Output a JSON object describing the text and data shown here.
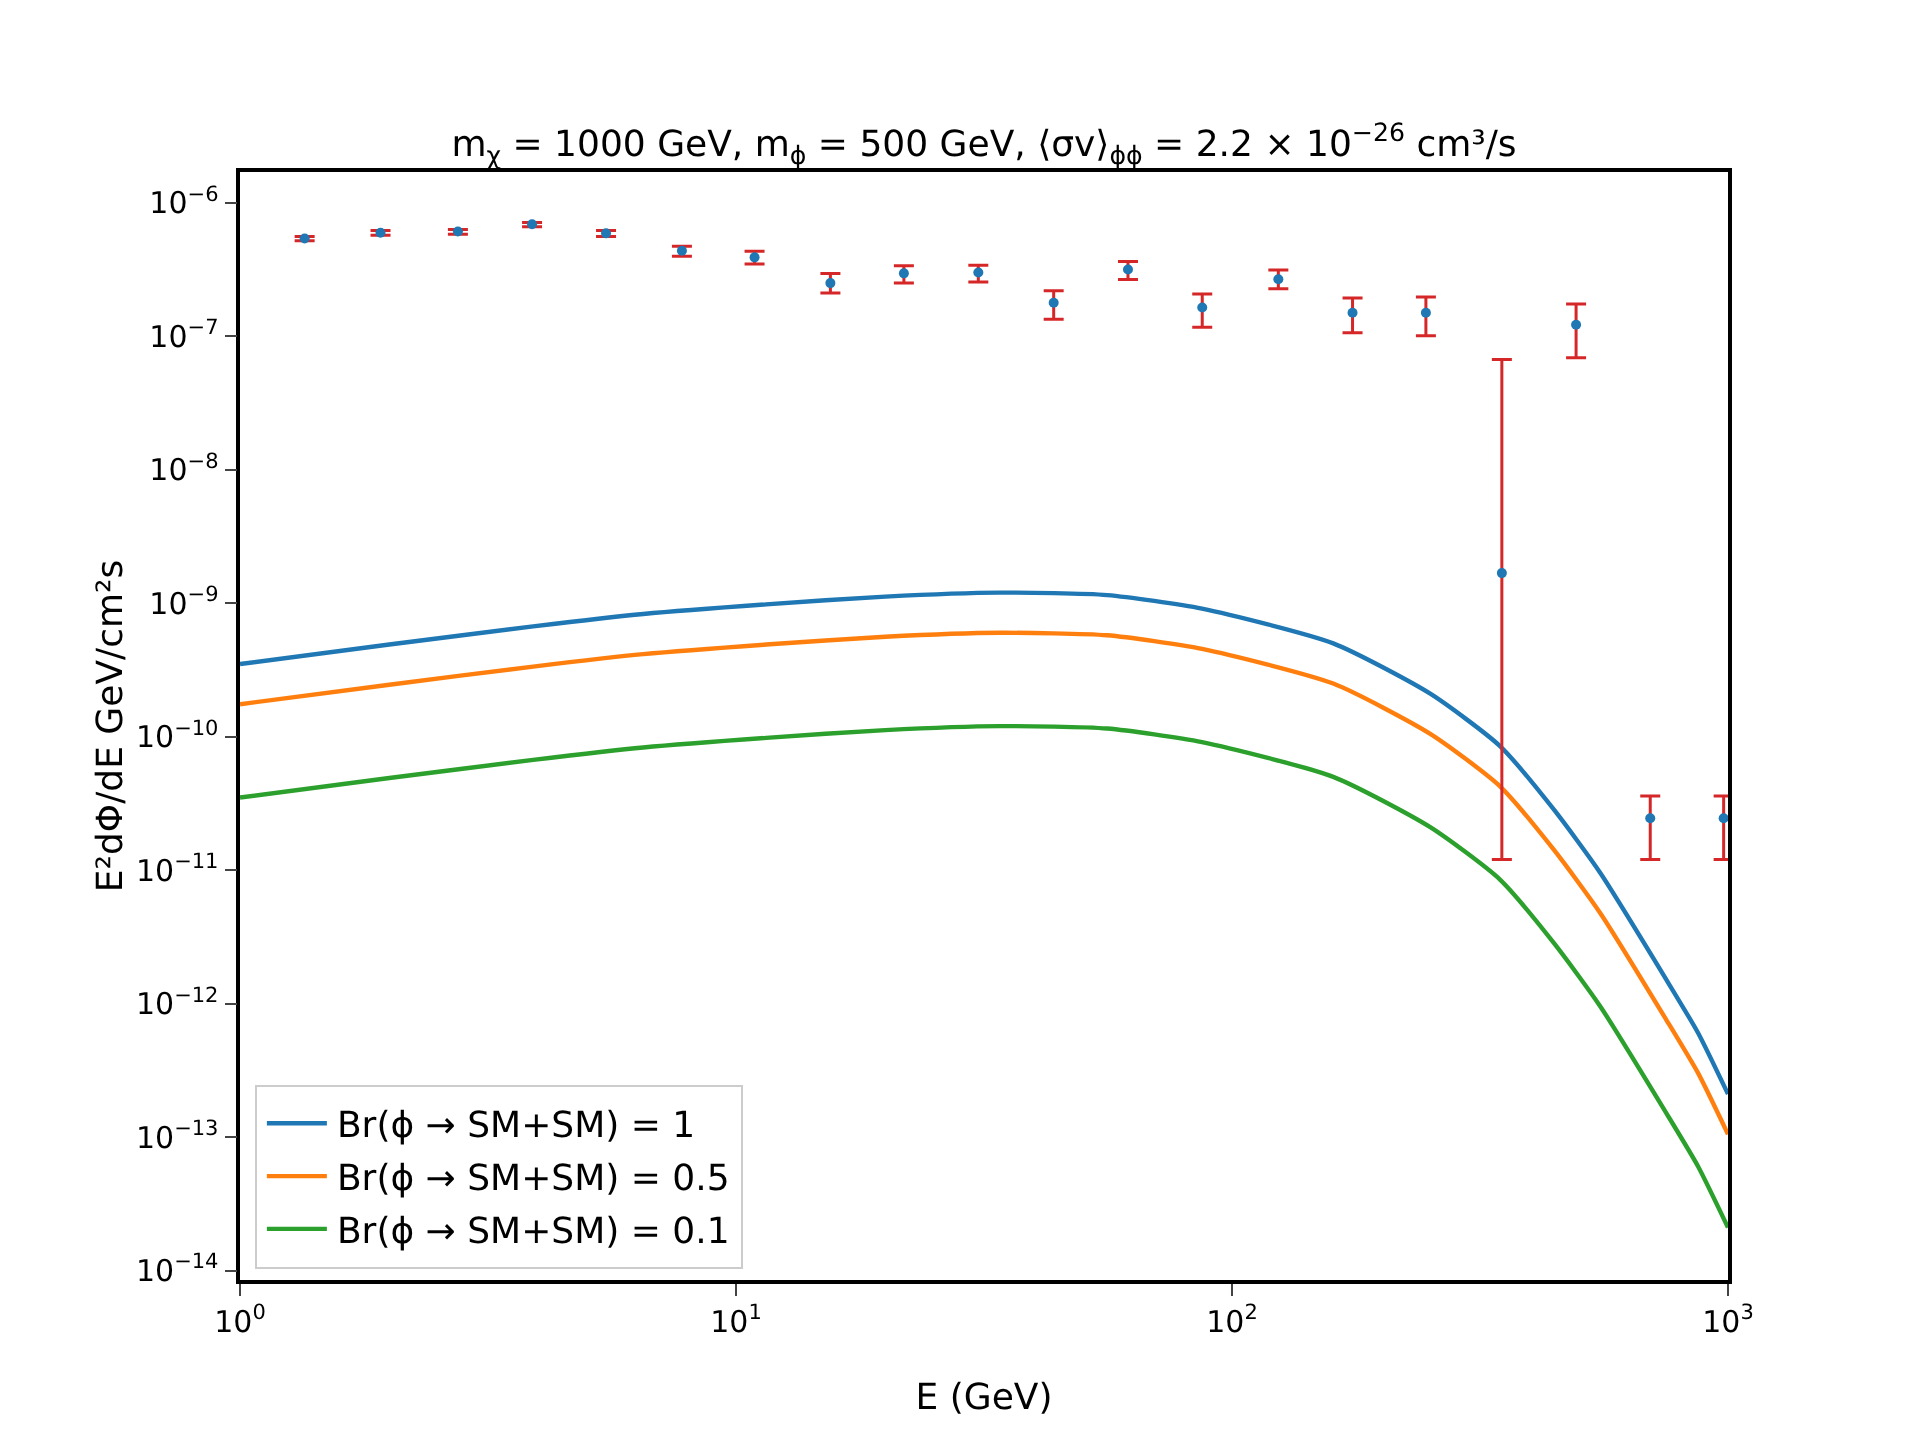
{
  "chart_data": {
    "type": "line",
    "title": "m$_{χ}$ = 1000 GeV, m$_{ϕ}$ = 500 GeV, ⟨σv⟩$_{ϕϕ}$ = 2.2 × 10$^{−26}$ cm³/s",
    "xlabel": "E (GeV)",
    "ylabel": "E²dΦ/dE GeV/cm²s",
    "log": "xy",
    "grid": false,
    "legend": "bottom left",
    "line_style": "solid",
    "xlim": [
      1,
      1000
    ],
    "ylim": [
      8.5e-15,
      1.7e-06
    ],
    "xticks": [
      {
        "value": 1,
        "label": "10$^{0}$"
      },
      {
        "value": 10,
        "label": "10$^{1}$"
      },
      {
        "value": 100,
        "label": "10$^{2}$"
      },
      {
        "value": 1000,
        "label": "10$^{3}$"
      }
    ],
    "yticks": [
      {
        "value": 1e-14,
        "label": "10$^{−14}$"
      },
      {
        "value": 1e-13,
        "label": "10$^{−13}$"
      },
      {
        "value": 1e-12,
        "label": "10$^{−12}$"
      },
      {
        "value": 1e-11,
        "label": "10$^{−11}$"
      },
      {
        "value": 1e-10,
        "label": "10$^{−10}$"
      },
      {
        "value": 1e-09,
        "label": "10$^{−9}$"
      },
      {
        "value": 1e-08,
        "label": "10$^{−8}$"
      },
      {
        "value": 1e-07,
        "label": "10$^{−7}$"
      },
      {
        "value": 1e-06,
        "label": "10$^{−6}$"
      }
    ],
    "series": [
      {
        "name": "Br(ϕ → SM+SM) = 1",
        "color": "#1f77b4",
        "x": [
          1,
          2,
          3.9,
          6.5,
          11.5,
          20,
          34,
          56,
          87,
          160,
          251,
          347,
          447,
          552,
          752,
          871,
          1000
        ],
        "values": [
          3.5e-10,
          4.9e-10,
          6.7e-10,
          8.3e-10,
          9.8e-10,
          1.12e-09,
          1.2e-09,
          1.15e-09,
          9.1e-10,
          5e-10,
          2.1e-10,
          8.5e-11,
          2.8e-11,
          9.6e-12,
          1.5e-12,
          6e-13,
          2.1e-13
        ]
      },
      {
        "name": "Br(ϕ → SM+SM) = 0.5",
        "color": "#ff7f0e",
        "x": [
          1,
          2,
          3.9,
          6.5,
          11.5,
          20,
          34,
          56,
          87,
          160,
          251,
          347,
          447,
          552,
          752,
          871,
          1000
        ],
        "values": [
          1.75e-10,
          2.45e-10,
          3.35e-10,
          4.15e-10,
          4.9e-10,
          5.6e-10,
          6e-10,
          5.75e-10,
          4.55e-10,
          2.5e-10,
          1.05e-10,
          4.25e-11,
          1.4e-11,
          4.8e-12,
          7.5e-13,
          3e-13,
          1.05e-13
        ]
      },
      {
        "name": "Br(ϕ → SM+SM) = 0.1",
        "color": "#2ca02c",
        "x": [
          1,
          2,
          3.9,
          6.5,
          11.5,
          20,
          34,
          56,
          87,
          160,
          251,
          347,
          447,
          552,
          752,
          871,
          1000
        ],
        "values": [
          3.5e-11,
          4.9e-11,
          6.7e-11,
          8.3e-11,
          9.8e-11,
          1.12e-10,
          1.2e-10,
          1.15e-10,
          9.1e-11,
          5e-11,
          2.1e-11,
          8.5e-12,
          2.8e-12,
          9.6e-13,
          1.5e-13,
          6e-14,
          2.1e-14
        ]
      },
      {
        "type": "scatter",
        "color": "#1f77b4",
        "marker": "circle",
        "x": [
          1.35,
          1.92,
          2.75,
          3.88,
          5.47,
          7.78,
          10.9,
          15.5,
          21.8,
          30.8,
          43.7,
          61.7,
          87.1,
          124,
          175,
          246,
          350,
          494,
          697,
          980
        ],
        "values": [
          5.4e-07,
          5.96e-07,
          6.1e-07,
          6.9e-07,
          5.9e-07,
          4.37e-07,
          3.9e-07,
          2.5e-07,
          2.96e-07,
          3e-07,
          1.78e-07,
          3.16e-07,
          1.64e-07,
          2.67e-07,
          1.5e-07,
          1.5e-07,
          1.68e-09,
          1.22e-07,
          2.45e-11,
          2.45e-11
        ],
        "errors": [
          [
            5.2e-07,
            5.6e-07
          ],
          [
            5.7e-07,
            6.2e-07
          ],
          [
            5.8e-07,
            6.3e-07
          ],
          [
            6.6e-07,
            7.1e-07
          ],
          [
            5.6e-07,
            6.2e-07
          ],
          [
            3.98e-07,
            4.73e-07
          ],
          [
            3.47e-07,
            4.33e-07
          ],
          [
            2.11e-07,
            2.95e-07
          ],
          [
            2.51e-07,
            3.37e-07
          ],
          [
            2.55e-07,
            3.4e-07
          ],
          [
            1.34e-07,
            2.19e-07
          ],
          [
            2.66e-07,
            3.63e-07
          ],
          [
            1.17e-07,
            2.07e-07
          ],
          [
            2.27e-07,
            3.14e-07
          ],
          [
            1.06e-07,
            1.93e-07
          ],
          [
            1.01e-07,
            1.97e-07
          ],
          [
            1.2e-11,
            6.7e-08
          ],
          [
            6.9e-08,
            1.74e-07
          ],
          [
            1.2e-11,
            3.6e-11
          ],
          [
            1.2e-11,
            3.6e-11
          ]
        ]
      }
    ]
  }
}
